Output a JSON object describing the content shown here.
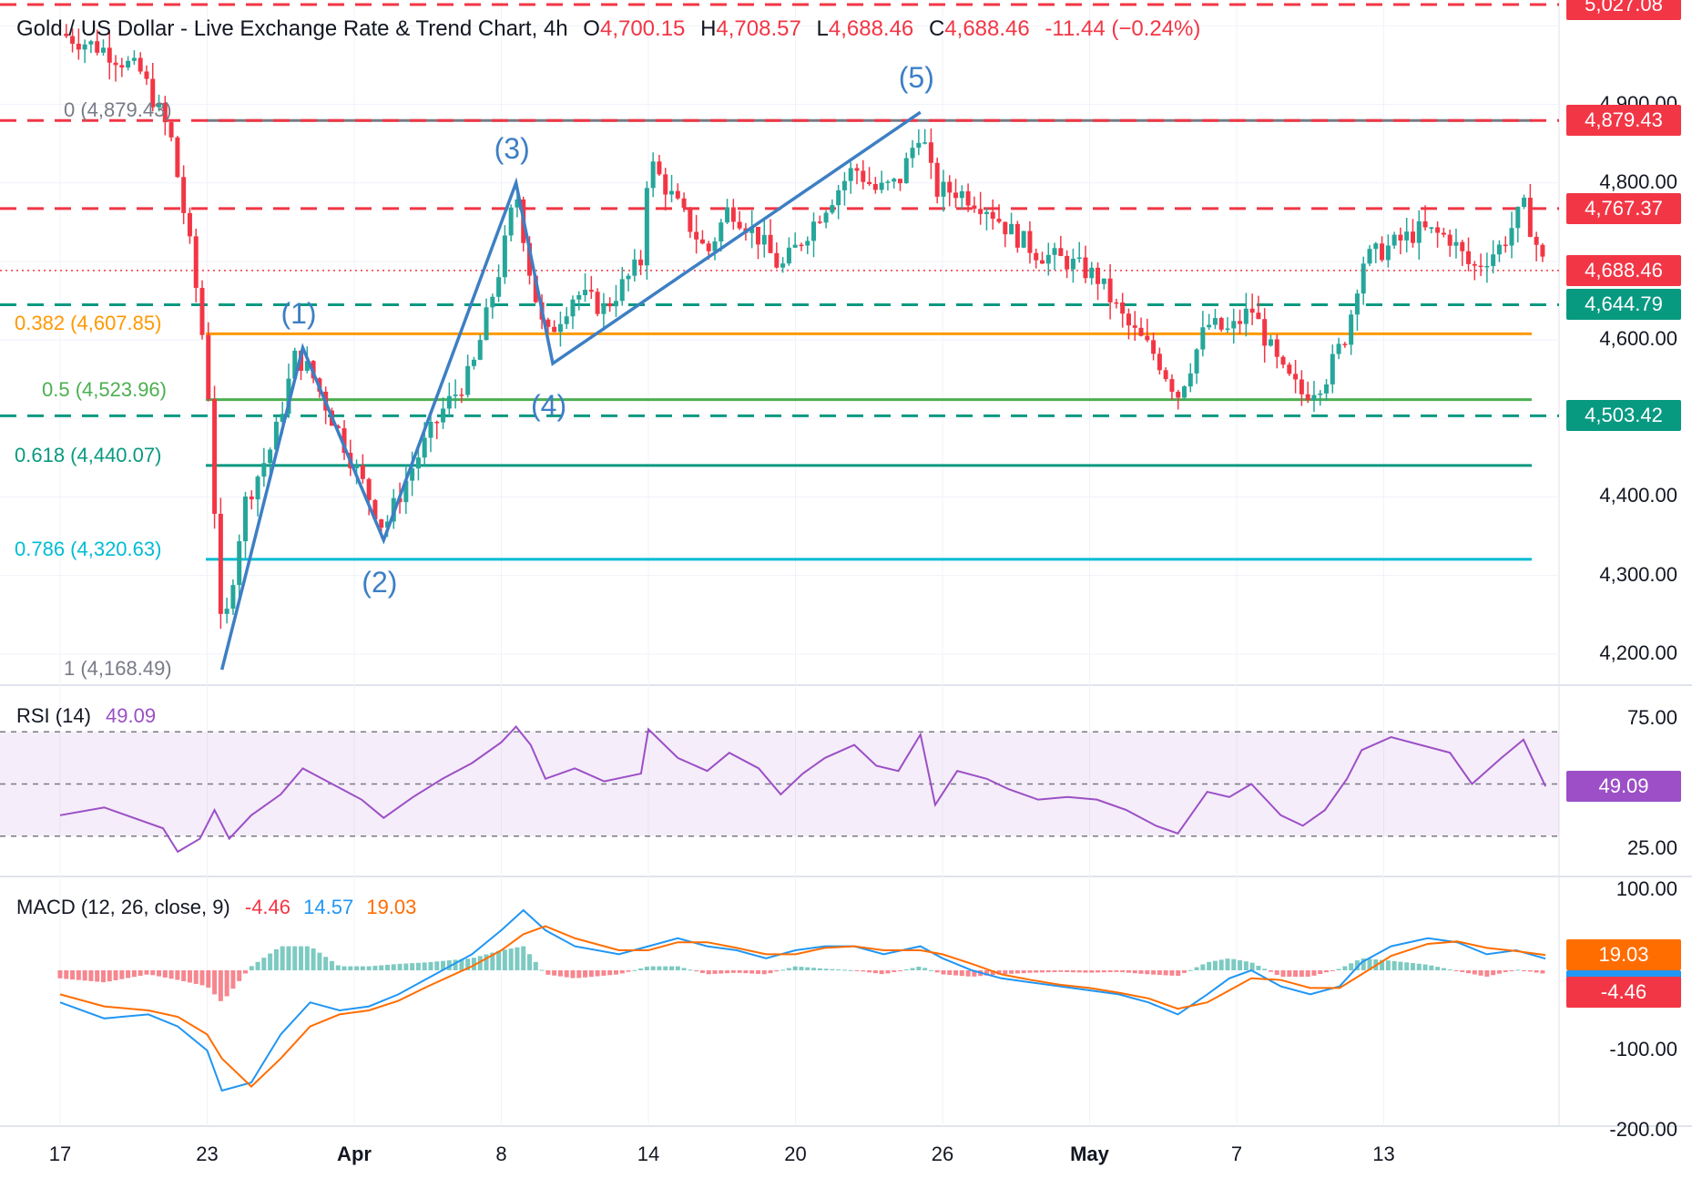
{
  "header": {
    "symbol_title": "Gold / US Dollar - Live Exchange Rate & Trend Chart, 4h",
    "o_label": "O",
    "o_value": "4,700.15",
    "h_label": "H",
    "h_value": "4,708.57",
    "l_label": "L",
    "l_value": "4,688.46",
    "c_label": "C",
    "c_value": "4,688.46",
    "change": "-11.44 (−0.24%)"
  },
  "colors": {
    "up": "#26a69a",
    "down": "#f23645",
    "wave": "#3d7fc4",
    "fib_0": "#787b86",
    "fib_382": "#ff9800",
    "fib_5": "#4caf50",
    "fib_618": "#089981",
    "fib_786": "#00bcd4",
    "rsi": "#9c4fc6",
    "macd": "#2196f3",
    "signal": "#ff6d00"
  },
  "chart_data": [
    {
      "type": "candlestick",
      "title": "Gold / US Dollar - Live Exchange Rate & Trend Chart, 4h",
      "x_tick_labels": [
        "17",
        "23",
        "Apr",
        "8",
        "14",
        "20",
        "26",
        "May",
        "7",
        "13"
      ],
      "y_tick_labels": [
        "4,200.00",
        "4,300.00",
        "4,400.00",
        "4,600.00",
        "4,800.00",
        "4,900.00"
      ],
      "ylim": [
        4160,
        5030
      ],
      "price_tags": [
        {
          "value": "5,027.08",
          "color": "#f23645"
        },
        {
          "value": "4,879.43",
          "color": "#f23645"
        },
        {
          "value": "4,767.37",
          "color": "#f23645"
        },
        {
          "value": "4,688.46",
          "color": "#f23645"
        },
        {
          "value": "4,644.79",
          "color": "#089981"
        },
        {
          "value": "4,503.42",
          "color": "#089981"
        }
      ],
      "dashed_levels": [
        {
          "value": 5027.08,
          "color": "#f23645"
        },
        {
          "value": 4879.43,
          "color": "#f23645"
        },
        {
          "value": 4767.37,
          "color": "#f23645"
        },
        {
          "value": 4644.79,
          "color": "#089981"
        },
        {
          "value": 4503.42,
          "color": "#089981"
        }
      ],
      "fib_levels": [
        {
          "label": "0 (4,879.43)",
          "value": 4879.43,
          "color": "#787b86"
        },
        {
          "label": "0.382 (4,607.85)",
          "value": 4607.85,
          "color": "#ff9800"
        },
        {
          "label": "0.5 (4,523.96)",
          "value": 4523.96,
          "color": "#4caf50"
        },
        {
          "label": "0.618 (4,440.07)",
          "value": 4440.07,
          "color": "#089981"
        },
        {
          "label": "0.786 (4,320.63)",
          "value": 4320.63,
          "color": "#00bcd4"
        },
        {
          "label": "1 (4,168.49)",
          "value": 4168.49,
          "color": "#787b86"
        }
      ],
      "wave_points": [
        {
          "label": "",
          "date_index": 1.1,
          "value": 4180
        },
        {
          "label": "(1)",
          "date_index": 1.65,
          "value": 4590
        },
        {
          "label": "(2)",
          "date_index": 2.2,
          "value": 4345
        },
        {
          "label": "(3)",
          "date_index": 3.1,
          "value": 4800
        },
        {
          "label": "(4)",
          "date_index": 3.35,
          "value": 4570
        },
        {
          "label": "(5)",
          "date_index": 5.85,
          "value": 4890
        }
      ],
      "close_path": [
        [
          0,
          4990
        ],
        [
          0.3,
          4970
        ],
        [
          0.55,
          4940
        ],
        [
          0.75,
          4860
        ],
        [
          0.9,
          4700
        ],
        [
          1.0,
          4560
        ],
        [
          1.1,
          4210
        ],
        [
          1.25,
          4390
        ],
        [
          1.45,
          4470
        ],
        [
          1.6,
          4580
        ],
        [
          1.7,
          4560
        ],
        [
          1.85,
          4500
        ],
        [
          2.05,
          4420
        ],
        [
          2.2,
          4360
        ],
        [
          2.4,
          4440
        ],
        [
          2.6,
          4510
        ],
        [
          2.8,
          4560
        ],
        [
          3.0,
          4700
        ],
        [
          3.1,
          4790
        ],
        [
          3.2,
          4680
        ],
        [
          3.3,
          4600
        ],
        [
          3.5,
          4660
        ],
        [
          3.7,
          4640
        ],
        [
          3.95,
          4700
        ],
        [
          4.0,
          4830
        ],
        [
          4.2,
          4770
        ],
        [
          4.4,
          4710
        ],
        [
          4.55,
          4770
        ],
        [
          4.75,
          4730
        ],
        [
          4.9,
          4690
        ],
        [
          5.05,
          4730
        ],
        [
          5.2,
          4770
        ],
        [
          5.4,
          4820
        ],
        [
          5.55,
          4790
        ],
        [
          5.7,
          4800
        ],
        [
          5.85,
          4870
        ],
        [
          5.95,
          4790
        ],
        [
          6.1,
          4790
        ],
        [
          6.3,
          4770
        ],
        [
          6.45,
          4740
        ],
        [
          6.65,
          4710
        ],
        [
          6.85,
          4700
        ],
        [
          7.05,
          4680
        ],
        [
          7.25,
          4620
        ],
        [
          7.45,
          4580
        ],
        [
          7.6,
          4530
        ],
        [
          7.8,
          4620
        ],
        [
          7.95,
          4610
        ],
        [
          8.1,
          4640
        ],
        [
          8.3,
          4560
        ],
        [
          8.45,
          4530
        ],
        [
          8.6,
          4550
        ],
        [
          8.75,
          4610
        ],
        [
          8.85,
          4700
        ],
        [
          9.05,
          4720
        ],
        [
          9.25,
          4740
        ],
        [
          9.45,
          4730
        ],
        [
          9.6,
          4690
        ],
        [
          9.8,
          4720
        ],
        [
          9.95,
          4770
        ],
        [
          10.1,
          4688
        ]
      ]
    },
    {
      "type": "line",
      "title": "RSI (14)",
      "value_label": "49.09",
      "y_tick_labels": [
        "75.00",
        "25.00"
      ],
      "ylim": [
        20,
        80
      ],
      "bands": [
        70,
        50,
        30
      ],
      "series": [
        {
          "values": [
            [
              0,
              38
            ],
            [
              0.3,
              41
            ],
            [
              0.5,
              37
            ],
            [
              0.7,
              33
            ],
            [
              0.8,
              24
            ],
            [
              0.95,
              29
            ],
            [
              1.05,
              40
            ],
            [
              1.15,
              29
            ],
            [
              1.3,
              38
            ],
            [
              1.5,
              46
            ],
            [
              1.65,
              56
            ],
            [
              1.85,
              50
            ],
            [
              2.05,
              44
            ],
            [
              2.2,
              37
            ],
            [
              2.4,
              45
            ],
            [
              2.6,
              52
            ],
            [
              2.8,
              58
            ],
            [
              3.0,
              66
            ],
            [
              3.1,
              72
            ],
            [
              3.2,
              65
            ],
            [
              3.3,
              52
            ],
            [
              3.5,
              56
            ],
            [
              3.7,
              51
            ],
            [
              3.95,
              54
            ],
            [
              4.0,
              71
            ],
            [
              4.2,
              60
            ],
            [
              4.4,
              55
            ],
            [
              4.55,
              62
            ],
            [
              4.75,
              56
            ],
            [
              4.9,
              46
            ],
            [
              5.05,
              54
            ],
            [
              5.2,
              60
            ],
            [
              5.4,
              65
            ],
            [
              5.55,
              57
            ],
            [
              5.7,
              55
            ],
            [
              5.85,
              69
            ],
            [
              5.95,
              42
            ],
            [
              6.1,
              55
            ],
            [
              6.3,
              52
            ],
            [
              6.45,
              48
            ],
            [
              6.65,
              44
            ],
            [
              6.85,
              45
            ],
            [
              7.05,
              44
            ],
            [
              7.25,
              40
            ],
            [
              7.45,
              34
            ],
            [
              7.6,
              31
            ],
            [
              7.8,
              47
            ],
            [
              7.95,
              45
            ],
            [
              8.1,
              50
            ],
            [
              8.3,
              38
            ],
            [
              8.45,
              34
            ],
            [
              8.6,
              40
            ],
            [
              8.75,
              52
            ],
            [
              8.85,
              63
            ],
            [
              9.05,
              68
            ],
            [
              9.25,
              65
            ],
            [
              9.45,
              62
            ],
            [
              9.6,
              50
            ],
            [
              9.8,
              60
            ],
            [
              9.95,
              67
            ],
            [
              10.1,
              49.09
            ]
          ]
        }
      ]
    },
    {
      "type": "line",
      "title": "MACD (12, 26, close, 9)",
      "macd_value": "-4.46",
      "macd_line_value": "14.57",
      "signal_value": "19.03",
      "y_tick_labels": [
        "100.00",
        "-100.00",
        "-200.00"
      ],
      "ylim": [
        -220,
        110
      ],
      "series": [
        {
          "name": "MACD",
          "values": [
            [
              0,
              -40
            ],
            [
              0.3,
              -60
            ],
            [
              0.6,
              -55
            ],
            [
              0.8,
              -70
            ],
            [
              1.0,
              -100
            ],
            [
              1.1,
              -150
            ],
            [
              1.3,
              -140
            ],
            [
              1.5,
              -80
            ],
            [
              1.7,
              -40
            ],
            [
              1.9,
              -50
            ],
            [
              2.1,
              -45
            ],
            [
              2.3,
              -30
            ],
            [
              2.5,
              -10
            ],
            [
              2.8,
              20
            ],
            [
              3.0,
              50
            ],
            [
              3.15,
              75
            ],
            [
              3.3,
              50
            ],
            [
              3.5,
              30
            ],
            [
              3.8,
              20
            ],
            [
              4.0,
              30
            ],
            [
              4.2,
              40
            ],
            [
              4.4,
              30
            ],
            [
              4.6,
              25
            ],
            [
              4.8,
              15
            ],
            [
              5.0,
              25
            ],
            [
              5.2,
              30
            ],
            [
              5.4,
              30
            ],
            [
              5.6,
              20
            ],
            [
              5.85,
              30
            ],
            [
              6.0,
              15
            ],
            [
              6.2,
              0
            ],
            [
              6.4,
              -10
            ],
            [
              6.6,
              -15
            ],
            [
              6.8,
              -20
            ],
            [
              7.0,
              -25
            ],
            [
              7.2,
              -30
            ],
            [
              7.4,
              -40
            ],
            [
              7.6,
              -55
            ],
            [
              7.8,
              -30
            ],
            [
              7.95,
              -10
            ],
            [
              8.1,
              0
            ],
            [
              8.3,
              -20
            ],
            [
              8.5,
              -30
            ],
            [
              8.7,
              -20
            ],
            [
              8.85,
              10
            ],
            [
              9.05,
              30
            ],
            [
              9.3,
              40
            ],
            [
              9.5,
              35
            ],
            [
              9.7,
              20
            ],
            [
              9.9,
              25
            ],
            [
              10.1,
              14.57
            ]
          ]
        },
        {
          "name": "Signal",
          "values": [
            [
              0,
              -30
            ],
            [
              0.3,
              -45
            ],
            [
              0.6,
              -50
            ],
            [
              0.8,
              -58
            ],
            [
              1.0,
              -80
            ],
            [
              1.1,
              -110
            ],
            [
              1.3,
              -145
            ],
            [
              1.5,
              -110
            ],
            [
              1.7,
              -70
            ],
            [
              1.9,
              -55
            ],
            [
              2.1,
              -50
            ],
            [
              2.3,
              -38
            ],
            [
              2.5,
              -20
            ],
            [
              2.8,
              5
            ],
            [
              3.0,
              25
            ],
            [
              3.15,
              45
            ],
            [
              3.3,
              55
            ],
            [
              3.5,
              40
            ],
            [
              3.8,
              25
            ],
            [
              4.0,
              25
            ],
            [
              4.2,
              35
            ],
            [
              4.4,
              35
            ],
            [
              4.6,
              28
            ],
            [
              4.8,
              20
            ],
            [
              5.0,
              20
            ],
            [
              5.2,
              28
            ],
            [
              5.4,
              30
            ],
            [
              5.6,
              25
            ],
            [
              5.85,
              25
            ],
            [
              6.0,
              20
            ],
            [
              6.2,
              8
            ],
            [
              6.4,
              -5
            ],
            [
              6.6,
              -12
            ],
            [
              6.8,
              -18
            ],
            [
              7.0,
              -22
            ],
            [
              7.2,
              -28
            ],
            [
              7.4,
              -35
            ],
            [
              7.6,
              -48
            ],
            [
              7.8,
              -40
            ],
            [
              7.95,
              -25
            ],
            [
              8.1,
              -10
            ],
            [
              8.3,
              -12
            ],
            [
              8.5,
              -22
            ],
            [
              8.7,
              -22
            ],
            [
              8.85,
              -5
            ],
            [
              9.05,
              18
            ],
            [
              9.3,
              33
            ],
            [
              9.5,
              36
            ],
            [
              9.7,
              28
            ],
            [
              9.9,
              24
            ],
            [
              10.1,
              19.03
            ]
          ]
        }
      ]
    }
  ]
}
